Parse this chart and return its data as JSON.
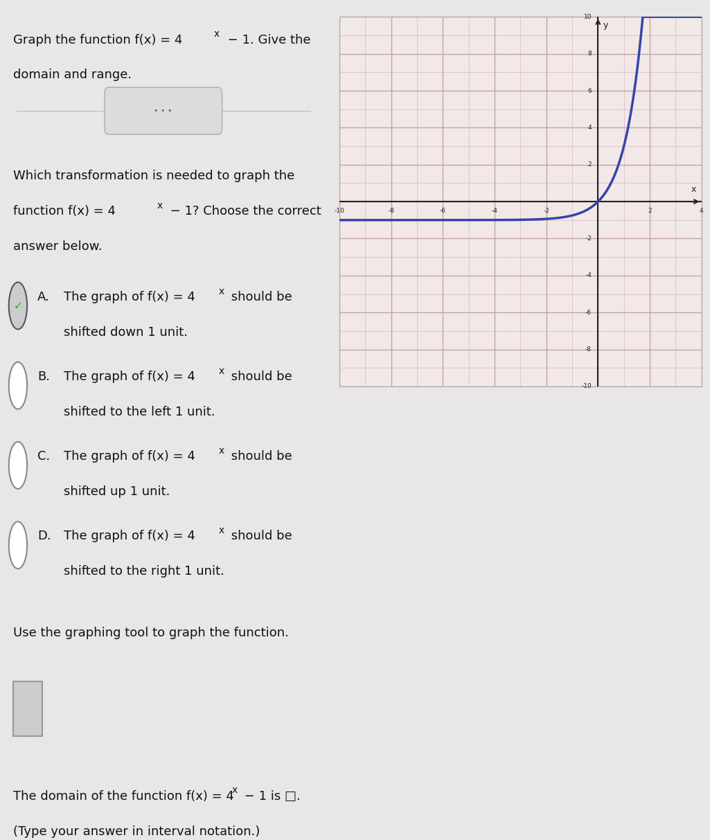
{
  "title_line1": "Graph the function f(x) = 4",
  "title_line1_super": "x",
  "title_line1_rest": " − 1. Give the",
  "title_line2": "domain and range.",
  "question_line1": "Which transformation is needed to graph the",
  "question_line2": "function f(x) = 4",
  "question_line2_super": "x",
  "question_line2_rest": " − 1? Choose the correct",
  "question_line3": "answer below.",
  "options": [
    {
      "label": "A.",
      "line1": "The graph of f(x) = 4",
      "super": "x",
      "line1r": " should be",
      "line2": "shifted down 1 unit.",
      "selected": true
    },
    {
      "label": "B.",
      "line1": "The graph of f(x) = 4",
      "super": "x",
      "line1r": " should be",
      "line2": "shifted to the left 1 unit.",
      "selected": false
    },
    {
      "label": "C.",
      "line1": "The graph of f(x) = 4",
      "super": "x",
      "line1r": " should be",
      "line2": "shifted up 1 unit.",
      "selected": false
    },
    {
      "label": "D.",
      "line1": "The graph of f(x) = 4",
      "super": "x",
      "line1r": " should be",
      "line2": "shifted to the right 1 unit.",
      "selected": false
    }
  ],
  "tool_text": "Use the graphing tool to graph the function.",
  "domain_line1": "The domain of the function f(x) = 4",
  "domain_super": "x",
  "domain_line1r": " − 1 is □.",
  "domain_note": "(Type your answer in interval notation.)",
  "bg_left": "#e8e6e6",
  "bg_right": "#e8e6e6",
  "graph_bg": "#f2e8e8",
  "graph_grid_minor": "#d4b8b8",
  "graph_grid_major": "#c4a4a4",
  "curve_color": "#3344aa",
  "axis_color": "#222222",
  "xmin": -10,
  "xmax": 4,
  "ymin": -10,
  "ymax": 10,
  "checkmark_color": "#22aa22",
  "text_color": "#111111",
  "separator_color": "#bbbbbb",
  "font_size": 13
}
